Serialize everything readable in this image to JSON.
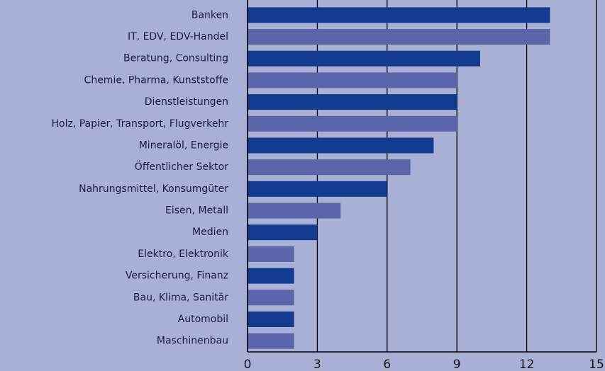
{
  "chart_data": {
    "type": "hbar",
    "categories": [
      "Banken",
      "IT, EDV, EDV-Handel",
      "Beratung, Consulting",
      "Chemie, Pharma, Kunststoffe",
      "Dienstleistungen",
      "Holz, Papier, Transport, Flugverkehr",
      "Mineralöl, Energie",
      "Öffentlicher Sektor",
      "Nahrungsmittel, Konsumgüter",
      "Eisen, Metall",
      "Medien",
      "Elektro, Elektronik",
      "Versicherung, Finanz",
      "Bau, Klima, Sanitär",
      "Automobil",
      "Maschinenbau"
    ],
    "values": [
      13,
      13,
      10,
      9,
      9,
      9,
      8,
      7,
      6,
      4,
      3,
      2,
      2,
      2,
      2,
      2
    ],
    "colors": [
      "#123a8e",
      "#5b65aa"
    ],
    "xlim": [
      0,
      15
    ],
    "xticks": [
      0,
      3,
      6,
      9,
      12,
      15
    ],
    "grid": true
  }
}
